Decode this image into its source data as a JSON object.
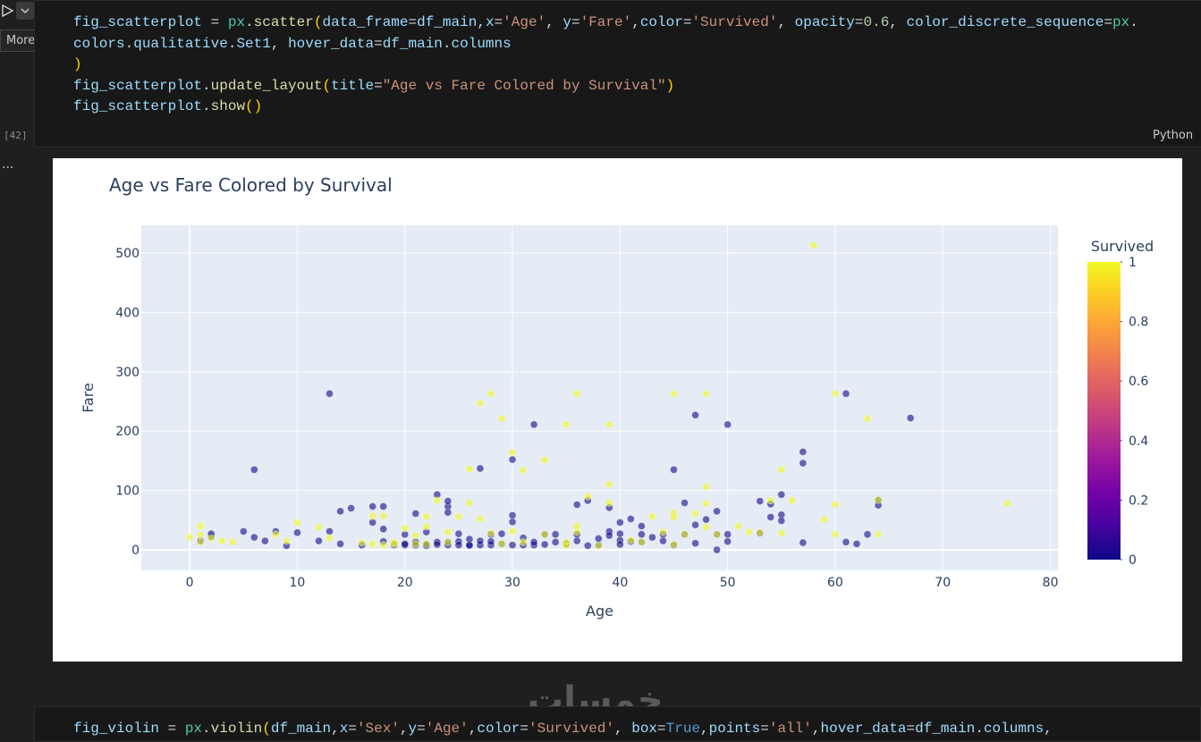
{
  "toolbar": {
    "tooltip": "More..."
  },
  "cell": {
    "execution_count": "[42]",
    "language": "Python",
    "lines": [
      [
        {
          "text": "fig_scatterplot",
          "color": "#9cdcfe"
        },
        {
          "text": " = ",
          "color": "#d4d4d4"
        },
        {
          "text": "px",
          "color": "#4ec9b0"
        },
        {
          "text": ".",
          "color": "#d4d4d4"
        },
        {
          "text": "scatter",
          "color": "#dcdcaa"
        },
        {
          "text": "(",
          "color": "#ffd700"
        },
        {
          "text": "data_frame",
          "color": "#9cdcfe"
        },
        {
          "text": "=",
          "color": "#d4d4d4"
        },
        {
          "text": "df_main",
          "color": "#9cdcfe"
        },
        {
          "text": ",",
          "color": "#d4d4d4"
        },
        {
          "text": "x",
          "color": "#9cdcfe"
        },
        {
          "text": "=",
          "color": "#d4d4d4"
        },
        {
          "text": "'Age'",
          "color": "#ce9178"
        },
        {
          "text": ", ",
          "color": "#d4d4d4"
        },
        {
          "text": "y",
          "color": "#9cdcfe"
        },
        {
          "text": "=",
          "color": "#d4d4d4"
        },
        {
          "text": "'Fare'",
          "color": "#ce9178"
        },
        {
          "text": ",",
          "color": "#d4d4d4"
        },
        {
          "text": "color",
          "color": "#9cdcfe"
        },
        {
          "text": "=",
          "color": "#d4d4d4"
        },
        {
          "text": "'Survived'",
          "color": "#ce9178"
        },
        {
          "text": ", ",
          "color": "#d4d4d4"
        },
        {
          "text": "opacity",
          "color": "#9cdcfe"
        },
        {
          "text": "=",
          "color": "#d4d4d4"
        },
        {
          "text": "0.6",
          "color": "#b5cea8"
        },
        {
          "text": ", ",
          "color": "#d4d4d4"
        },
        {
          "text": "color_discrete_sequence",
          "color": "#9cdcfe"
        },
        {
          "text": "=",
          "color": "#d4d4d4"
        },
        {
          "text": "px",
          "color": "#4ec9b0"
        },
        {
          "text": ".",
          "color": "#d4d4d4"
        }
      ],
      [
        {
          "text": "colors",
          "color": "#9cdcfe"
        },
        {
          "text": ".",
          "color": "#d4d4d4"
        },
        {
          "text": "qualitative",
          "color": "#9cdcfe"
        },
        {
          "text": ".",
          "color": "#d4d4d4"
        },
        {
          "text": "Set1",
          "color": "#9cdcfe"
        },
        {
          "text": ", ",
          "color": "#d4d4d4"
        },
        {
          "text": "hover_data",
          "color": "#9cdcfe"
        },
        {
          "text": "=",
          "color": "#d4d4d4"
        },
        {
          "text": "df_main",
          "color": "#9cdcfe"
        },
        {
          "text": ".",
          "color": "#d4d4d4"
        },
        {
          "text": "columns",
          "color": "#9cdcfe"
        }
      ],
      [
        {
          "text": ")",
          "color": "#ffd700"
        }
      ],
      [
        {
          "text": "fig_scatterplot",
          "color": "#9cdcfe"
        },
        {
          "text": ".",
          "color": "#d4d4d4"
        },
        {
          "text": "update_layout",
          "color": "#dcdcaa"
        },
        {
          "text": "(",
          "color": "#ffd700"
        },
        {
          "text": "title",
          "color": "#9cdcfe"
        },
        {
          "text": "=",
          "color": "#d4d4d4"
        },
        {
          "text": "\"Age vs Fare Colored by Survival\"",
          "color": "#ce9178"
        },
        {
          "text": ")",
          "color": "#ffd700"
        }
      ],
      [
        {
          "text": "fig_scatterplot",
          "color": "#9cdcfe"
        },
        {
          "text": ".",
          "color": "#d4d4d4"
        },
        {
          "text": "show",
          "color": "#dcdcaa"
        },
        {
          "text": "()",
          "color": "#ffd700"
        }
      ]
    ]
  },
  "output_menu": "...",
  "chart_data": {
    "type": "scatter",
    "title": "Age vs Fare Colored by Survival",
    "x_label": "Age",
    "y_label": "Fare",
    "xlim": [
      -4.5,
      80.7
    ],
    "ylim": [
      -34.6,
      546.7
    ],
    "xticks": [
      0,
      10,
      20,
      30,
      40,
      50,
      60,
      70,
      80
    ],
    "yticks": [
      0,
      100,
      200,
      300,
      400,
      500
    ],
    "grid": true,
    "opacity": 0.6,
    "colorbar": {
      "title": "Survived",
      "lim": [
        0,
        1
      ],
      "ticks": [
        0,
        0.2,
        0.4,
        0.6,
        0.8,
        1
      ],
      "colorscale": [
        "#0d0887",
        "#46039f",
        "#7201a8",
        "#9c179e",
        "#bd3786",
        "#d8576b",
        "#ed7953",
        "#fb9f3a",
        "#fdca26",
        "#f0f921"
      ]
    },
    "x": [
      1,
      2,
      2,
      5,
      6,
      6,
      7,
      8,
      9,
      10,
      12,
      13,
      13,
      14,
      14,
      15,
      16,
      17,
      17,
      18,
      18,
      18,
      19,
      19,
      20,
      20,
      20,
      21,
      21,
      21,
      22,
      22,
      22,
      23,
      23,
      23,
      24,
      24,
      24,
      24,
      24,
      25,
      25,
      25,
      26,
      26,
      26,
      27,
      27,
      27,
      28,
      28,
      28,
      29,
      29,
      30,
      30,
      30,
      30,
      31,
      31,
      32,
      32,
      32,
      33,
      33,
      34,
      34,
      35,
      36,
      36,
      36,
      37,
      37,
      38,
      39,
      39,
      39,
      40,
      40,
      40,
      40,
      41,
      41,
      42,
      42,
      42,
      43,
      44,
      44,
      45,
      46,
      46,
      47,
      47,
      47,
      48,
      49,
      49,
      50,
      50,
      50,
      53,
      53,
      54,
      54,
      55,
      55,
      55,
      57,
      57,
      57,
      61,
      61,
      62,
      63,
      64,
      64,
      67,
      49,
      45,
      38,
      0,
      1,
      1,
      1,
      2,
      3,
      4,
      8,
      9,
      10,
      12,
      13,
      16,
      17,
      17,
      18,
      18,
      19,
      19,
      20,
      21,
      21,
      22,
      22,
      22,
      23,
      24,
      24,
      25,
      26,
      26,
      27,
      27,
      28,
      28,
      29,
      29,
      30,
      30,
      31,
      31,
      33,
      33,
      35,
      35,
      35,
      36,
      36,
      36,
      37,
      38,
      39,
      39,
      39,
      41,
      42,
      43,
      44,
      45,
      45,
      45,
      45,
      46,
      47,
      48,
      48,
      48,
      48,
      49,
      51,
      52,
      53,
      54,
      55,
      55,
      56,
      58,
      59,
      60,
      60,
      60,
      63,
      64,
      64,
      76
    ],
    "values": [
      15,
      22,
      27,
      31,
      135,
      21,
      15,
      31,
      7,
      29,
      15,
      263,
      31,
      10,
      65,
      70,
      8,
      73,
      46,
      73,
      35,
      14,
      8,
      10,
      8,
      10,
      26,
      13,
      61,
      8,
      7,
      9,
      30,
      93,
      13,
      9,
      73,
      63,
      82,
      8,
      13,
      27,
      14,
      8,
      7,
      8,
      18,
      137,
      8,
      15,
      8,
      26,
      14,
      10,
      27,
      152,
      58,
      8,
      47,
      8,
      20,
      211,
      8,
      13,
      9,
      26,
      13,
      26,
      10,
      76,
      26,
      15,
      83,
      7,
      8,
      71,
      31,
      24,
      46,
      27,
      16,
      9,
      52,
      14,
      40,
      26,
      13,
      21,
      26,
      15,
      135,
      79,
      26,
      227,
      42,
      11,
      51,
      65,
      0,
      211,
      26,
      14,
      82,
      28,
      55,
      77,
      93,
      59,
      49,
      165,
      146,
      12,
      263,
      13,
      10,
      26,
      75,
      84,
      222,
      26,
      8,
      19,
      21,
      13,
      40,
      25,
      20,
      15,
      13,
      26,
      15,
      46,
      38,
      20,
      12,
      10,
      57,
      57,
      8,
      10,
      12,
      36,
      24,
      10,
      56,
      39,
      10,
      83,
      30,
      13,
      56,
      136,
      79,
      247,
      52,
      263,
      28,
      221,
      10,
      164,
      31,
      134,
      13,
      151,
      26,
      211,
      13,
      7,
      263,
      40,
      30,
      90,
      7,
      211,
      110,
      79,
      16,
      13,
      56,
      30,
      263,
      62,
      55,
      9,
      26,
      61,
      263,
      106,
      78,
      38,
      26,
      40,
      30,
      29,
      83,
      135,
      28,
      83,
      513,
      51,
      263,
      76,
      26,
      221,
      84,
      26,
      78
    ],
    "survived": [
      0,
      0,
      0,
      0,
      0,
      0,
      0,
      0,
      0,
      0,
      0,
      0,
      0,
      0,
      0,
      0,
      0,
      0,
      0,
      0,
      0,
      0,
      0,
      0,
      0,
      0,
      0,
      0,
      0,
      0,
      0,
      0,
      0,
      0,
      0,
      0,
      0,
      0,
      0,
      0,
      0,
      0,
      0,
      0,
      0,
      0,
      0,
      0,
      0,
      0,
      0,
      0,
      0,
      0,
      0,
      0,
      0,
      0,
      0,
      0,
      0,
      0,
      0,
      0,
      0,
      0,
      0,
      0,
      0,
      0,
      0,
      0,
      0,
      0,
      0,
      0,
      0,
      0,
      0,
      0,
      0,
      0,
      0,
      0,
      0,
      0,
      0,
      0,
      0,
      0,
      0,
      0,
      0,
      0,
      0,
      0,
      0,
      0,
      0,
      0,
      0,
      0,
      0,
      0,
      0,
      0,
      0,
      0,
      0,
      0,
      0,
      0,
      0,
      0,
      0,
      0,
      0,
      0,
      0,
      0,
      0,
      0,
      1,
      1,
      1,
      1,
      1,
      1,
      1,
      1,
      1,
      1,
      1,
      1,
      1,
      1,
      1,
      1,
      1,
      1,
      1,
      1,
      1,
      1,
      1,
      1,
      1,
      1,
      1,
      1,
      1,
      1,
      1,
      1,
      1,
      1,
      1,
      1,
      1,
      1,
      1,
      1,
      1,
      1,
      1,
      1,
      1,
      1,
      1,
      1,
      1,
      1,
      1,
      1,
      1,
      1,
      1,
      1,
      1,
      1,
      1,
      1,
      1,
      1,
      1,
      1,
      1,
      1,
      1,
      1,
      1,
      1,
      1,
      1,
      1,
      1,
      1,
      1,
      1,
      1,
      1,
      1,
      1,
      1,
      1,
      1,
      1
    ]
  },
  "watermark": "خمسات",
  "next_cell": {
    "line": [
      {
        "text": "fig_violin",
        "color": "#9cdcfe"
      },
      {
        "text": " = ",
        "color": "#d4d4d4"
      },
      {
        "text": "px",
        "color": "#4ec9b0"
      },
      {
        "text": ".",
        "color": "#d4d4d4"
      },
      {
        "text": "violin",
        "color": "#dcdcaa"
      },
      {
        "text": "(",
        "color": "#ffd700"
      },
      {
        "text": "df_main",
        "color": "#9cdcfe"
      },
      {
        "text": ",",
        "color": "#d4d4d4"
      },
      {
        "text": "x",
        "color": "#9cdcfe"
      },
      {
        "text": "=",
        "color": "#d4d4d4"
      },
      {
        "text": "'Sex'",
        "color": "#ce9178"
      },
      {
        "text": ",",
        "color": "#d4d4d4"
      },
      {
        "text": "y",
        "color": "#9cdcfe"
      },
      {
        "text": "=",
        "color": "#d4d4d4"
      },
      {
        "text": "'Age'",
        "color": "#ce9178"
      },
      {
        "text": ",",
        "color": "#d4d4d4"
      },
      {
        "text": "color",
        "color": "#9cdcfe"
      },
      {
        "text": "=",
        "color": "#d4d4d4"
      },
      {
        "text": "'Survived'",
        "color": "#ce9178"
      },
      {
        "text": ", ",
        "color": "#d4d4d4"
      },
      {
        "text": "box",
        "color": "#9cdcfe"
      },
      {
        "text": "=",
        "color": "#d4d4d4"
      },
      {
        "text": "True",
        "color": "#569cd6"
      },
      {
        "text": ",",
        "color": "#d4d4d4"
      },
      {
        "text": "points",
        "color": "#9cdcfe"
      },
      {
        "text": "=",
        "color": "#d4d4d4"
      },
      {
        "text": "'all'",
        "color": "#ce9178"
      },
      {
        "text": ",",
        "color": "#d4d4d4"
      },
      {
        "text": "hover_data",
        "color": "#9cdcfe"
      },
      {
        "text": "=",
        "color": "#d4d4d4"
      },
      {
        "text": "df_main",
        "color": "#9cdcfe"
      },
      {
        "text": ".",
        "color": "#d4d4d4"
      },
      {
        "text": "columns",
        "color": "#9cdcfe"
      },
      {
        "text": ",",
        "color": "#d4d4d4"
      }
    ]
  }
}
